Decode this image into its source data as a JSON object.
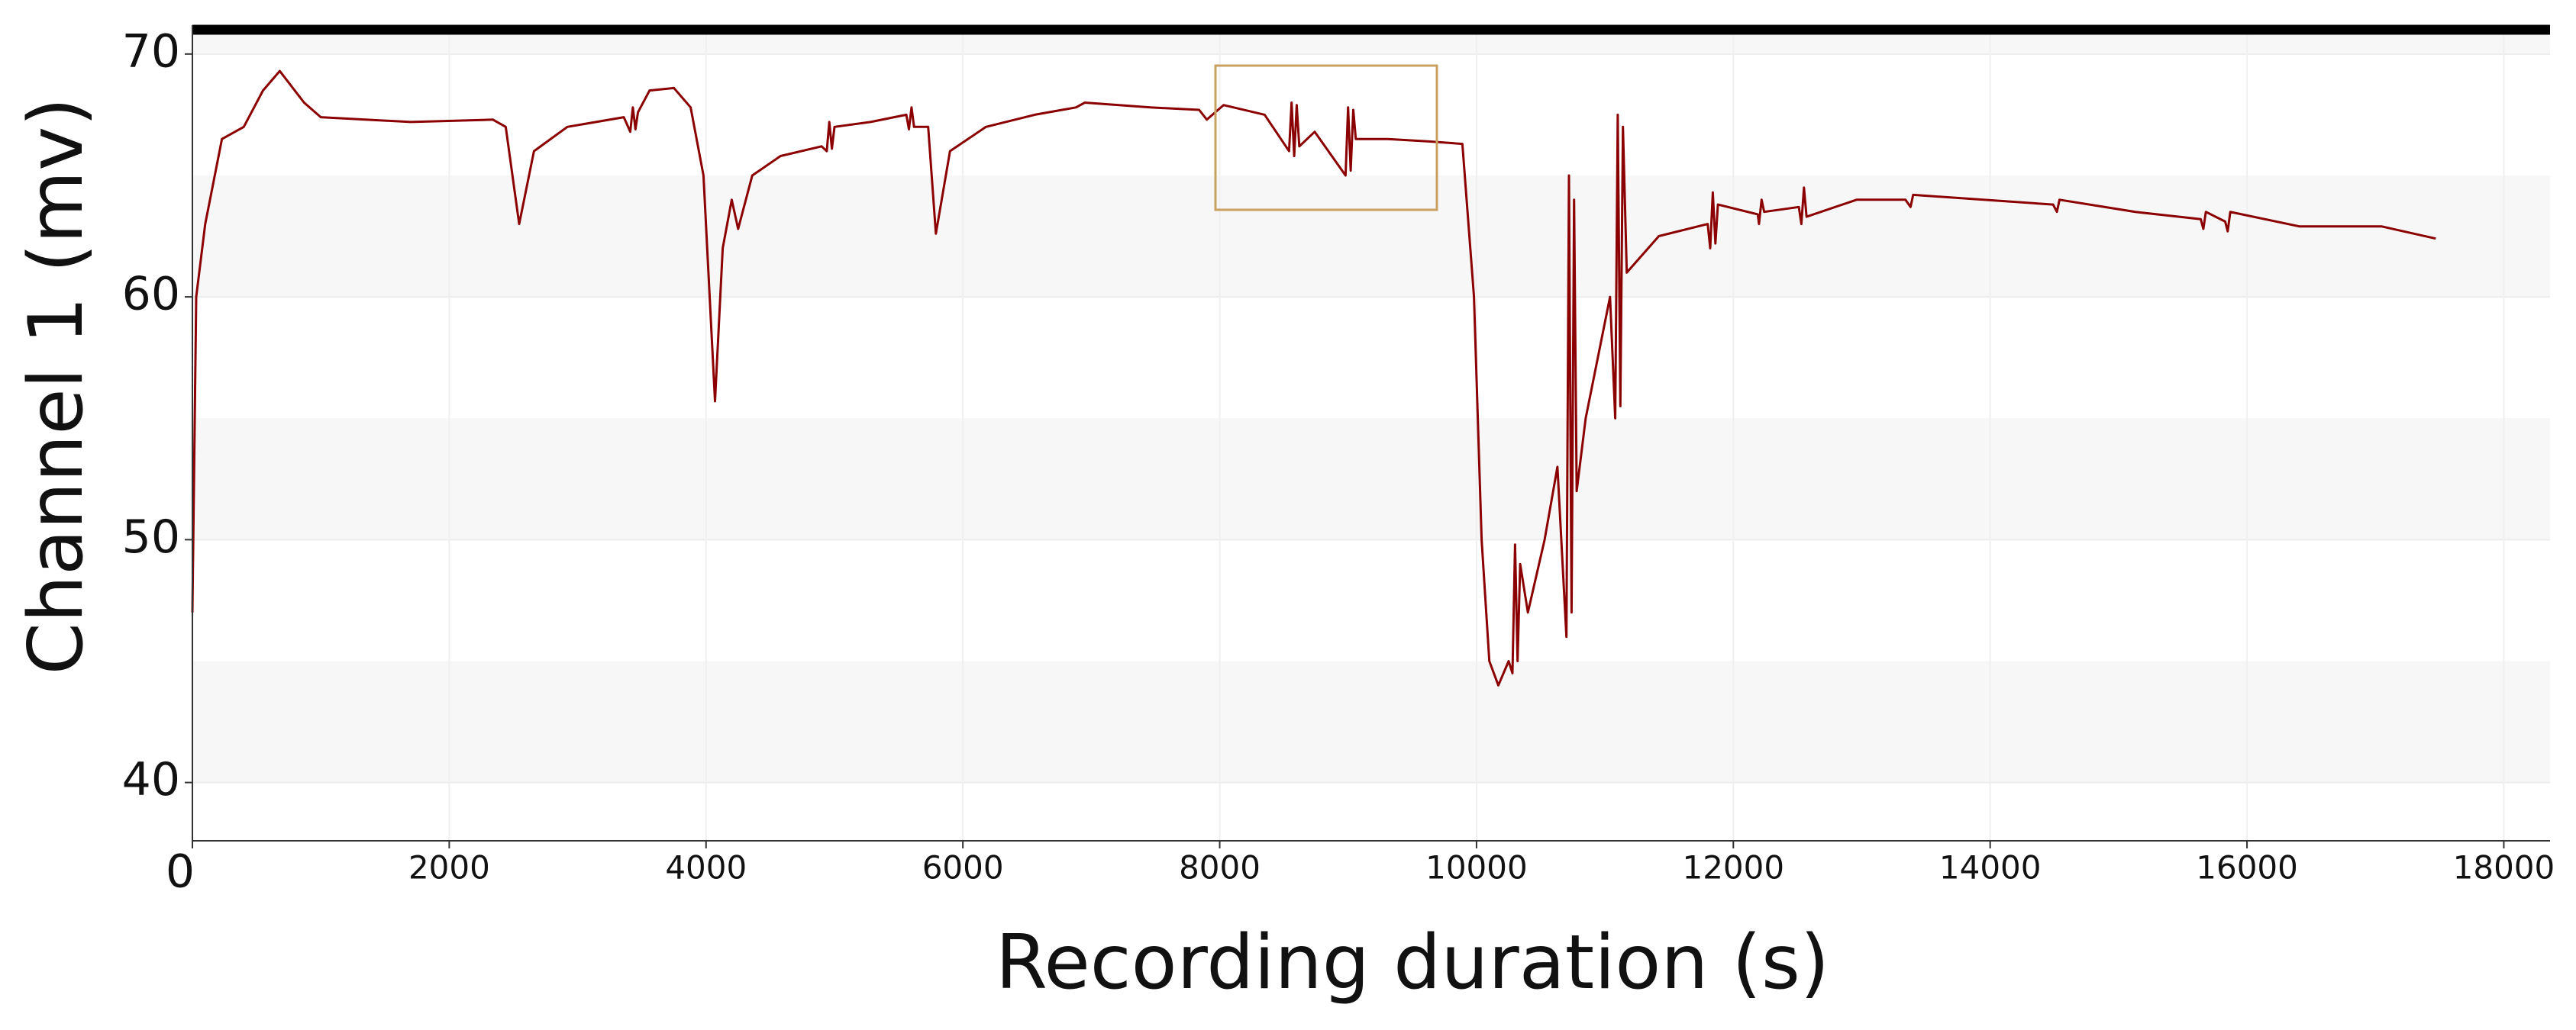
{
  "chart_data": {
    "type": "line",
    "x_label": "Recording duration (s)",
    "y_label": "Channel 1 (mv)",
    "xlim": [
      0,
      18360
    ],
    "ylim": [
      37.6,
      71.0
    ],
    "xticks": [
      0,
      2000,
      4000,
      6000,
      8000,
      10000,
      12000,
      14000,
      16000,
      18000
    ],
    "yticks": [
      40,
      50,
      60,
      70
    ],
    "grid": true,
    "series": [
      {
        "color": "#8b0000",
        "x": [
          0,
          30,
          100,
          230,
          400,
          550,
          680,
          870,
          1000,
          1700,
          2340,
          2440,
          2545,
          2660,
          2920,
          3360,
          3410,
          3430,
          3450,
          3470,
          3560,
          3750,
          3880,
          3980,
          4070,
          4130,
          4200,
          4250,
          4360,
          4580,
          4900,
          4940,
          4960,
          4980,
          5000,
          5280,
          5560,
          5580,
          5600,
          5620,
          5730,
          5790,
          5900,
          6180,
          6560,
          6880,
          6950,
          7460,
          7840,
          7900,
          8030,
          8350,
          8540,
          8560,
          8580,
          8600,
          8620,
          8740,
          8980,
          9000,
          9020,
          9040,
          9060,
          9310,
          9630,
          9890,
          9980,
          10040,
          10100,
          10170,
          10250,
          10280,
          10300,
          10320,
          10340,
          10400,
          10530,
          10630,
          10700,
          10720,
          10740,
          10760,
          10780,
          10850,
          11040,
          11080,
          11100,
          11120,
          11140,
          11170,
          11420,
          11800,
          11820,
          11840,
          11860,
          11880,
          12190,
          12200,
          12220,
          12240,
          12510,
          12530,
          12550,
          12570,
          12960,
          13340,
          13380,
          13400,
          14490,
          14520,
          14540,
          15130,
          15640,
          15660,
          15680,
          15830,
          15850,
          15870,
          16410,
          17050,
          17470
        ],
        "values": [
          47,
          60,
          63,
          66.5,
          67,
          68.5,
          69.3,
          68,
          67.4,
          67.2,
          67.3,
          67,
          63,
          66,
          67,
          67.4,
          66.8,
          67.8,
          66.9,
          67.6,
          68.5,
          68.6,
          67.8,
          65,
          55.7,
          62,
          64,
          62.8,
          65,
          65.8,
          66.2,
          66,
          67.2,
          66.1,
          67,
          67.2,
          67.5,
          66.9,
          67.8,
          67,
          67,
          62.6,
          66,
          67,
          67.5,
          67.8,
          68,
          67.8,
          67.7,
          67.3,
          67.9,
          67.5,
          66,
          68,
          65.8,
          67.9,
          66.2,
          66.8,
          65,
          67.8,
          65.2,
          67.7,
          66.5,
          66.5,
          66.4,
          66.3,
          60,
          50,
          45,
          44,
          45,
          44.5,
          49.8,
          45,
          49,
          47,
          50,
          53,
          46,
          65,
          47,
          64,
          52,
          55,
          60,
          55,
          67.5,
          55.5,
          67,
          61,
          62.5,
          63,
          62,
          64.3,
          62.2,
          63.8,
          63.4,
          63,
          64,
          63.5,
          63.7,
          63,
          64.5,
          63.3,
          64,
          64,
          63.7,
          64.2,
          63.8,
          63.5,
          64,
          63.5,
          63.2,
          62.8,
          63.5,
          63.1,
          62.7,
          63.5,
          62.9,
          62.9,
          62.4
        ]
      }
    ]
  }
}
